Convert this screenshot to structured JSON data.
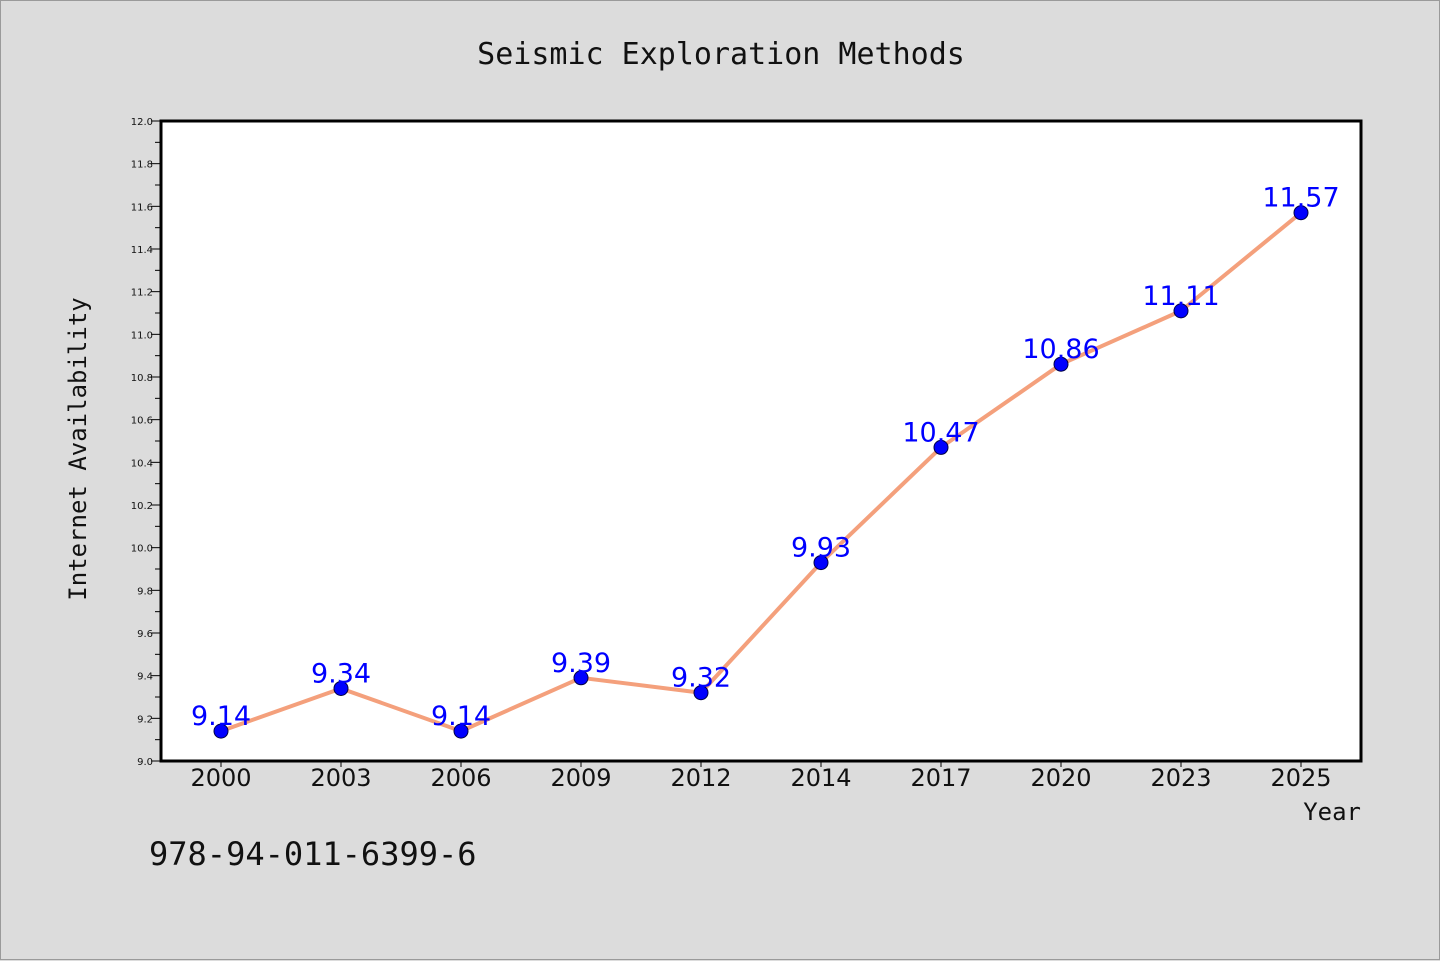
{
  "isbn_text": "978-94-011-6399-6",
  "colors": {
    "background": "#dcdcdc",
    "plot_area": "#ffffff",
    "line": "#f4a07c",
    "marker": "#0000ff",
    "data_label": "#0000ff"
  },
  "chart_data": {
    "type": "line",
    "title": "Seismic Exploration Methods",
    "xlabel": "Year",
    "ylabel": "Internet Availability",
    "categories": [
      "2000",
      "2003",
      "2006",
      "2009",
      "2012",
      "2014",
      "2017",
      "2020",
      "2023",
      "2025"
    ],
    "series": [
      {
        "values": [
          9.14,
          9.34,
          9.14,
          9.39,
          9.32,
          9.93,
          10.47,
          10.86,
          11.11,
          11.57
        ],
        "marker": "circle",
        "data_labels": [
          "9.14",
          "9.34",
          "9.14",
          "9.39",
          "9.32",
          "9.93",
          "10.47",
          "10.86",
          "11.11",
          "11.57"
        ]
      }
    ],
    "ylim": [
      9.0,
      12.0
    ],
    "yticks": [
      "9.0",
      "9.2",
      "9.4",
      "9.6",
      "9.8",
      "10.0",
      "10.2",
      "10.4",
      "10.6",
      "10.8",
      "11.0",
      "11.2",
      "11.4",
      "11.6",
      "11.8",
      "12.0"
    ],
    "grid": false,
    "legend": "none"
  }
}
